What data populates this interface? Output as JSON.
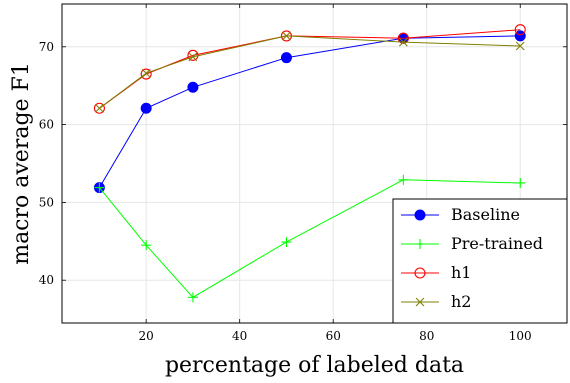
{
  "chart_data": {
    "type": "line",
    "title": "",
    "xlabel": "percentage of labeled data",
    "ylabel": "macro average F1",
    "xlim": [
      2,
      110
    ],
    "ylim": [
      34.5,
      75.5
    ],
    "xticks": [
      20,
      40,
      60,
      80,
      100
    ],
    "yticks": [
      40,
      50,
      60,
      70
    ],
    "grid": true,
    "legend_position": "bottom-right",
    "series": [
      {
        "name": "Baseline",
        "color": "#0000ff",
        "marker": "filled-circle",
        "x": [
          10,
          20,
          30,
          50,
          75,
          100
        ],
        "y": [
          51.9,
          62.1,
          64.8,
          68.6,
          71.1,
          71.4
        ]
      },
      {
        "name": "Pre-trained",
        "color": "#00ff00",
        "marker": "plus",
        "x": [
          10,
          20,
          30,
          50,
          75,
          100
        ],
        "y": [
          51.9,
          44.5,
          37.8,
          44.9,
          52.9,
          52.5
        ]
      },
      {
        "name": "h1",
        "color": "#ff0000",
        "marker": "open-circle",
        "x": [
          10,
          20,
          30,
          50,
          75,
          100
        ],
        "y": [
          62.1,
          66.5,
          68.9,
          71.4,
          71.1,
          72.2
        ]
      },
      {
        "name": "h2",
        "color": "#808000",
        "marker": "x",
        "x": [
          10,
          20,
          30,
          50,
          75,
          100
        ],
        "y": [
          62.1,
          66.6,
          68.7,
          71.4,
          70.6,
          70.1
        ]
      }
    ]
  }
}
